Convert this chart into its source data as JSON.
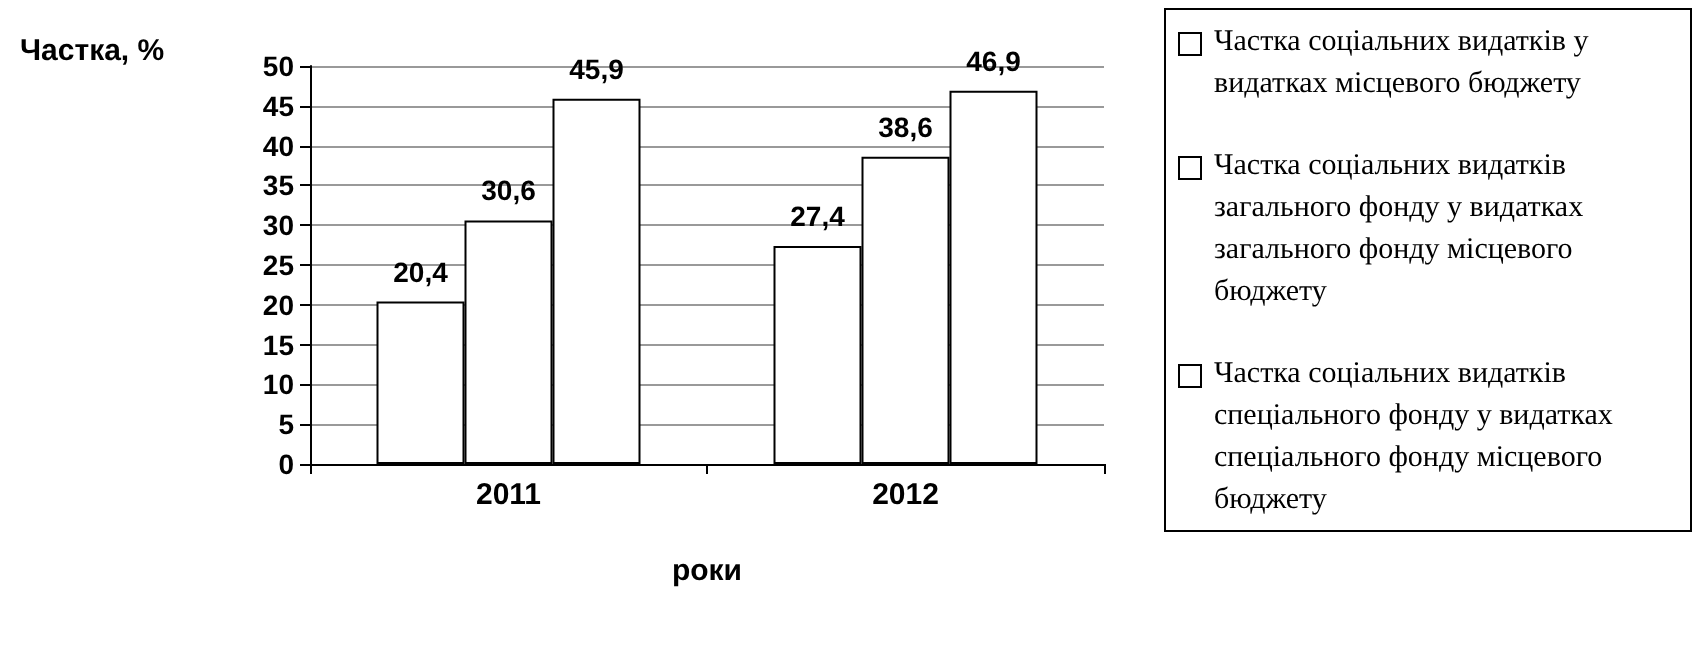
{
  "chart_data": {
    "type": "bar",
    "xlabel": "роки",
    "ylabel": "Частка, %",
    "categories": [
      "2011",
      "2012"
    ],
    "series": [
      {
        "name": "Частка соціальних видатків у видатках місцевого бюджету",
        "color": "#ffffff",
        "values": [
          20.4,
          27.4
        ],
        "value_labels": [
          "20,4",
          "27,4"
        ]
      },
      {
        "name": "Частка соціальних видатків загального фонду у видатках загального фонду місцевого бюджету",
        "color": "#ffffff",
        "values": [
          30.6,
          38.6
        ],
        "value_labels": [
          "30,6",
          "38,6"
        ]
      },
      {
        "name": "Частка соціальних видатків спеціального фонду у видатках спеціального фонду місцевого бюджету",
        "color": "#ffffff",
        "values": [
          45.9,
          46.9
        ],
        "value_labels": [
          "45,9",
          "46,9"
        ]
      }
    ],
    "ylim": [
      0,
      50
    ],
    "yticks": [
      0,
      5,
      10,
      15,
      20,
      25,
      30,
      35,
      40,
      45,
      50
    ],
    "grid": "y",
    "legend": "right"
  }
}
